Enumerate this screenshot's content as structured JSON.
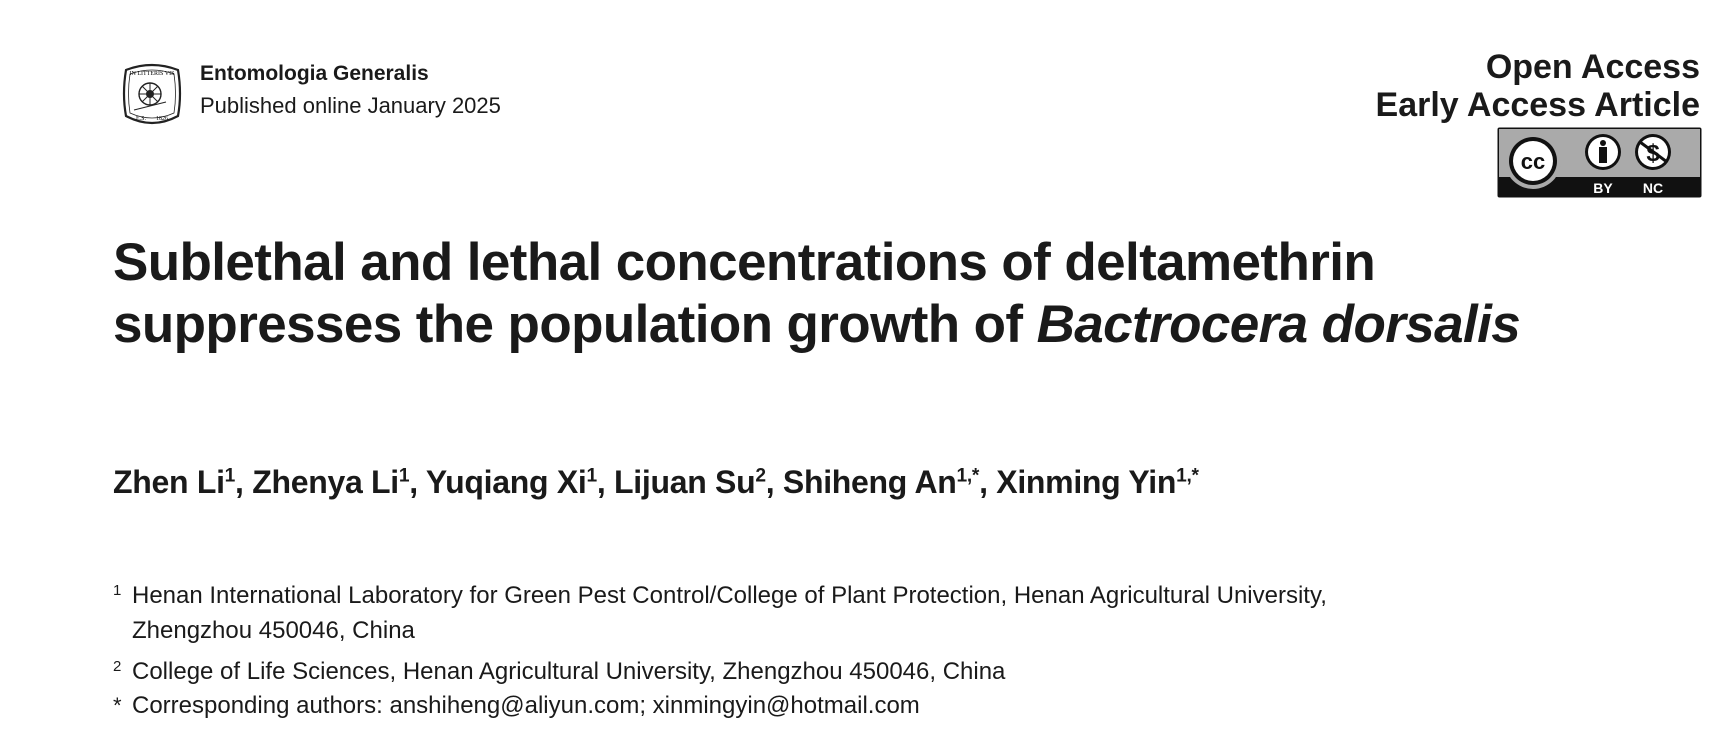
{
  "header": {
    "journal_name": "Entomologia Generalis",
    "published": "Published online January 2025",
    "logo_text": [
      "IN LITTERIS VIS",
      "E.S.",
      "1826"
    ],
    "open_access": "Open Access",
    "early_access": "Early Access Article",
    "license_badge": {
      "icon": "cc-by-nc-icon",
      "labels": [
        "BY",
        "NC"
      ],
      "text": "cc"
    }
  },
  "title": {
    "line1": "Sublethal and lethal concentrations of deltamethrin",
    "line2_plain": "suppresses the population growth of ",
    "line2_italic": "Bactrocera dorsalis"
  },
  "authors": [
    {
      "name": "Zhen Li",
      "sup": "1",
      "sep": ", "
    },
    {
      "name": "Zhenya Li",
      "sup": "1",
      "sep": ", "
    },
    {
      "name": "Yuqiang Xi",
      "sup": "1",
      "sep": ", "
    },
    {
      "name": "Lijuan Su",
      "sup": "2",
      "sep": ", "
    },
    {
      "name": "Shiheng An",
      "sup": "1,*",
      "sep": ", "
    },
    {
      "name": "Xinming Yin",
      "sup": "1,*",
      "sep": ""
    }
  ],
  "affiliations": [
    {
      "mark": "1",
      "line1": "Henan International Laboratory for Green Pest Control/College of Plant Protection, Henan Agricultural University,",
      "line2": "Zhengzhou 450046, China"
    },
    {
      "mark": "2",
      "line1": "College of Life Sciences, Henan Agricultural University, Zhengzhou 450046, China"
    },
    {
      "mark": "*",
      "line1": "Corresponding authors: anshiheng@aliyun.com; xinmingyin@hotmail.com"
    }
  ]
}
